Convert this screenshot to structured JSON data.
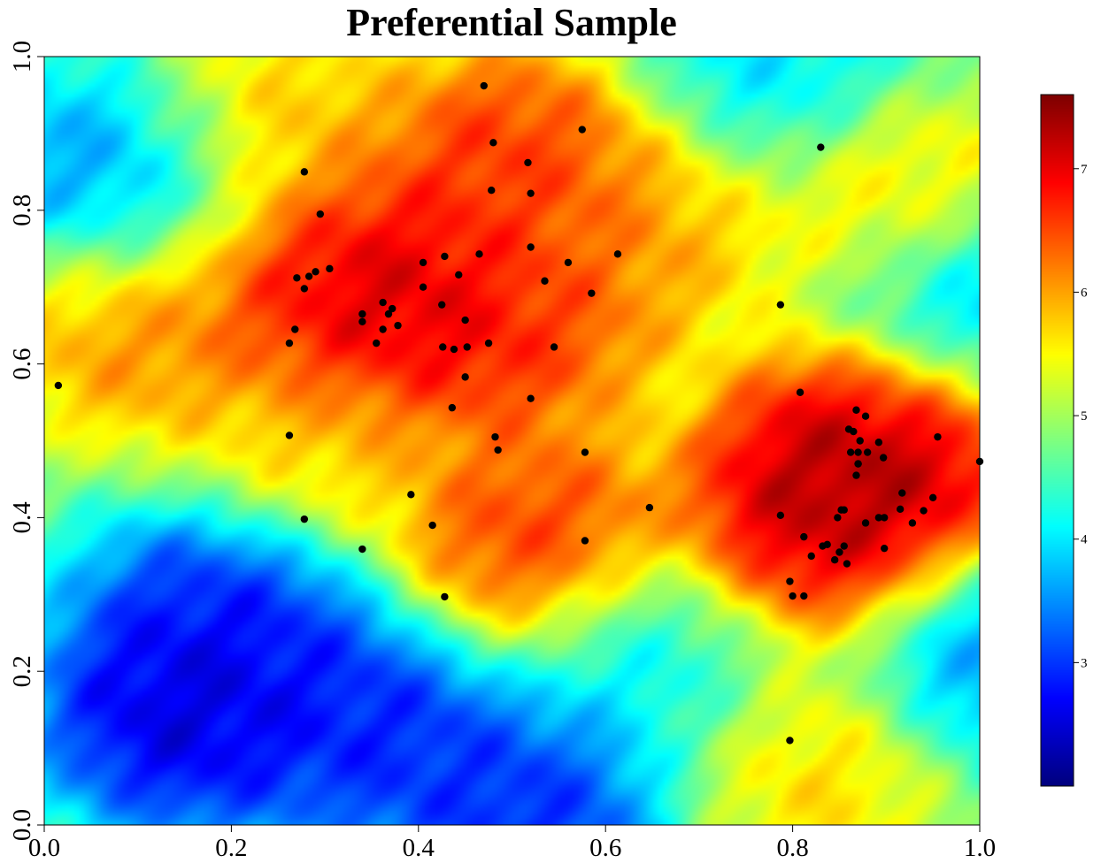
{
  "chart_data": {
    "type": "heatmap",
    "title": "Preferential Sample",
    "xlabel": "",
    "ylabel": "",
    "xlim": [
      0.0,
      1.0
    ],
    "ylim": [
      0.0,
      1.0
    ],
    "x_ticks": [
      "0.0",
      "0.2",
      "0.4",
      "0.6",
      "0.8",
      "1.0"
    ],
    "y_ticks": [
      "0.0",
      "0.2",
      "0.4",
      "0.6",
      "0.8",
      "1.0"
    ],
    "grid": false,
    "colorbar": {
      "range": [
        2.0,
        7.6
      ],
      "ticks": [
        "3",
        "4",
        "5",
        "6",
        "7"
      ],
      "colormap": [
        "#00007f",
        "#0000ff",
        "#007fff",
        "#00ffff",
        "#7fff7f",
        "#ffff00",
        "#ff7f00",
        "#ff0000",
        "#7f0000"
      ]
    },
    "field_features": [
      {
        "x": 0.4,
        "y": 0.68,
        "value": 7.3
      },
      {
        "x": 0.3,
        "y": 0.7,
        "value": 6.9
      },
      {
        "x": 0.5,
        "y": 0.66,
        "value": 6.6
      },
      {
        "x": 0.5,
        "y": 0.86,
        "value": 6.8
      },
      {
        "x": 0.53,
        "y": 0.78,
        "value": 6.2
      },
      {
        "x": 0.87,
        "y": 0.44,
        "value": 7.5
      },
      {
        "x": 0.91,
        "y": 0.5,
        "value": 7.0
      },
      {
        "x": 0.84,
        "y": 0.38,
        "value": 7.0
      },
      {
        "x": 0.52,
        "y": 0.37,
        "value": 6.7
      },
      {
        "x": 0.1,
        "y": 0.65,
        "value": 6.2
      },
      {
        "x": 0.25,
        "y": 0.91,
        "value": 5.9
      },
      {
        "x": 0.65,
        "y": 0.78,
        "value": 5.9
      },
      {
        "x": 0.92,
        "y": 0.81,
        "value": 5.9
      },
      {
        "x": 0.3,
        "y": 0.5,
        "value": 5.8
      },
      {
        "x": 0.82,
        "y": 0.08,
        "value": 5.8
      },
      {
        "x": 0.15,
        "y": 0.15,
        "value": 2.4
      },
      {
        "x": 0.2,
        "y": 0.27,
        "value": 2.8
      },
      {
        "x": 0.35,
        "y": 0.13,
        "value": 2.8
      },
      {
        "x": 0.52,
        "y": 0.02,
        "value": 2.8
      },
      {
        "x": 0.08,
        "y": 0.84,
        "value": 3.4
      },
      {
        "x": 0.78,
        "y": 0.98,
        "value": 3.9
      },
      {
        "x": 0.99,
        "y": 0.68,
        "value": 3.4
      },
      {
        "x": 1.0,
        "y": 0.23,
        "value": 3.4
      },
      {
        "x": 0.65,
        "y": 0.2,
        "value": 4.0
      }
    ],
    "points": {
      "x": [
        0.015,
        0.47,
        0.48,
        0.575,
        0.517,
        0.478,
        0.52,
        0.278,
        0.83,
        0.295,
        0.613,
        0.52,
        0.428,
        0.465,
        0.405,
        0.56,
        0.443,
        0.305,
        0.29,
        0.283,
        0.27,
        0.535,
        0.278,
        0.405,
        0.585,
        0.362,
        0.425,
        0.372,
        0.34,
        0.368,
        0.34,
        0.378,
        0.362,
        0.45,
        0.268,
        0.262,
        0.355,
        0.452,
        0.426,
        0.438,
        0.475,
        0.545,
        0.45,
        0.787,
        0.52,
        0.436,
        0.262,
        0.482,
        0.485,
        0.578,
        0.392,
        0.647,
        0.278,
        0.415,
        0.578,
        0.34,
        0.428,
        0.808,
        0.868,
        0.878,
        0.86,
        0.955,
        0.865,
        0.892,
        0.872,
        0.87,
        0.88,
        0.862,
        0.87,
        0.87,
        1.0,
        0.897,
        0.917,
        0.95,
        0.915,
        0.94,
        0.928,
        0.868,
        0.855,
        0.852,
        0.848,
        0.892,
        0.898,
        0.878,
        0.787,
        0.812,
        0.837,
        0.832,
        0.855,
        0.85,
        0.82,
        0.858,
        0.845,
        0.898,
        0.797,
        0.8,
        0.812,
        0.797
      ],
      "y": [
        0.572,
        0.962,
        0.888,
        0.905,
        0.862,
        0.826,
        0.822,
        0.85,
        0.882,
        0.795,
        0.743,
        0.752,
        0.74,
        0.743,
        0.732,
        0.732,
        0.716,
        0.724,
        0.72,
        0.714,
        0.712,
        0.708,
        0.698,
        0.7,
        0.692,
        0.68,
        0.677,
        0.672,
        0.665,
        0.665,
        0.655,
        0.65,
        0.645,
        0.657,
        0.645,
        0.627,
        0.627,
        0.622,
        0.622,
        0.619,
        0.627,
        0.622,
        0.583,
        0.677,
        0.555,
        0.543,
        0.507,
        0.505,
        0.488,
        0.485,
        0.43,
        0.413,
        0.398,
        0.39,
        0.37,
        0.359,
        0.297,
        0.563,
        0.54,
        0.532,
        0.515,
        0.505,
        0.512,
        0.498,
        0.5,
        0.485,
        0.485,
        0.485,
        0.47,
        0.47,
        0.473,
        0.478,
        0.432,
        0.426,
        0.411,
        0.409,
        0.393,
        0.455,
        0.41,
        0.41,
        0.4,
        0.4,
        0.4,
        0.393,
        0.403,
        0.375,
        0.365,
        0.363,
        0.363,
        0.355,
        0.35,
        0.34,
        0.345,
        0.36,
        0.317,
        0.298,
        0.298,
        0.11
      ]
    }
  }
}
